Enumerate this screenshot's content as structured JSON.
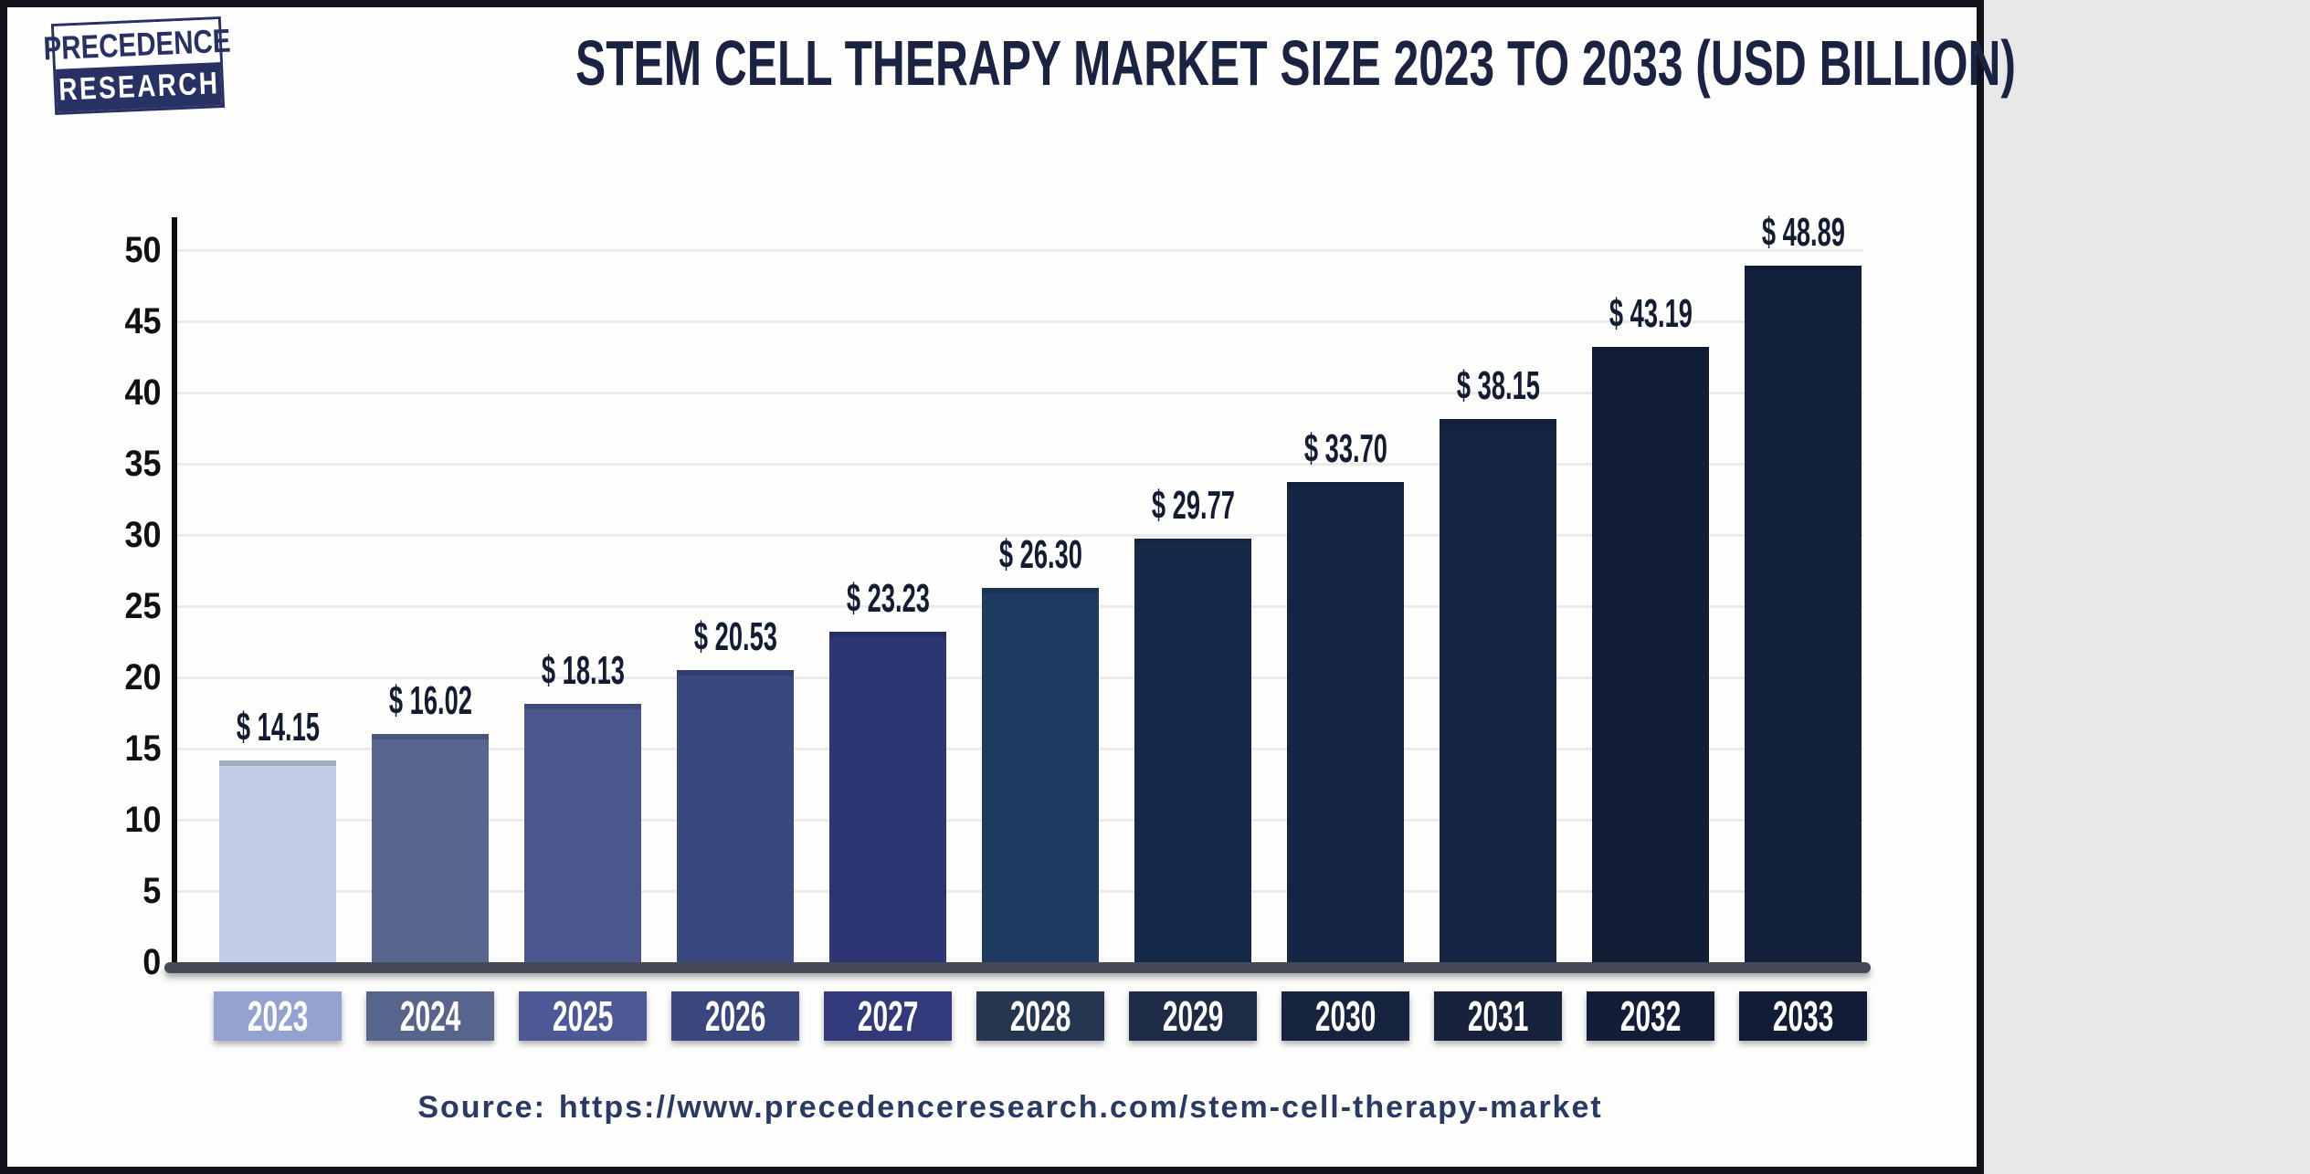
{
  "logo": {
    "line1": "PRECEDENCE",
    "line2": "RESEARCH"
  },
  "header": {
    "title": "STEM CELL THERAPY MARKET SIZE 2023 TO 2033 (USD BILLION)"
  },
  "footer": {
    "source_label": "Source:",
    "source_url": "https://www.precedenceresearch.com/stem-cell-therapy-market"
  },
  "colors": {
    "frame_border": "#12121a",
    "background": "#fdfdfb",
    "title_text": "#1b2342",
    "value_label_text": "#141c34",
    "axis_line": "#0d0d0d",
    "baseline_bar": "#464a57",
    "gridline": "#ebebeb",
    "tick_text": "#111111",
    "year_text": "#ffffff",
    "logo_navy": "#283163"
  },
  "chart_data": {
    "type": "bar",
    "title": "STEM CELL THERAPY MARKET SIZE 2023 TO 2033 (USD BILLION)",
    "unit": "USD Billion",
    "value_prefix": "$ ",
    "categories": [
      "2023",
      "2024",
      "2025",
      "2026",
      "2027",
      "2028",
      "2029",
      "2030",
      "2031",
      "2032",
      "2033"
    ],
    "values": [
      14.15,
      16.02,
      18.13,
      20.53,
      23.23,
      26.3,
      29.77,
      33.7,
      38.15,
      43.19,
      48.89
    ],
    "value_labels": [
      "$ 14.15",
      "$ 16.02",
      "$ 18.13",
      "$ 20.53",
      "$ 23.23",
      "$ 26.30",
      "$ 29.77",
      "$ 33.70",
      "$ 38.15",
      "$ 43.19",
      "$ 48.89"
    ],
    "bar_colors": [
      "#c2cde8",
      "#56668f",
      "#4a578e",
      "#394980",
      "#2d3572",
      "#1e3a60",
      "#152a49",
      "#142643",
      "#152442",
      "#121d36",
      "#12203c"
    ],
    "tick_box_colors": [
      "#93a2d0",
      "#57648c",
      "#4c5994",
      "#39477d",
      "#333a7b",
      "#243650",
      "#1d2b46",
      "#162440",
      "#17233d",
      "#121e37",
      "#111d36"
    ],
    "xlabel": "",
    "ylabel": "",
    "ylim": [
      0,
      50
    ],
    "yticks": [
      0,
      5,
      10,
      15,
      20,
      25,
      30,
      35,
      40,
      45,
      50
    ],
    "grid": true,
    "legend": false
  }
}
